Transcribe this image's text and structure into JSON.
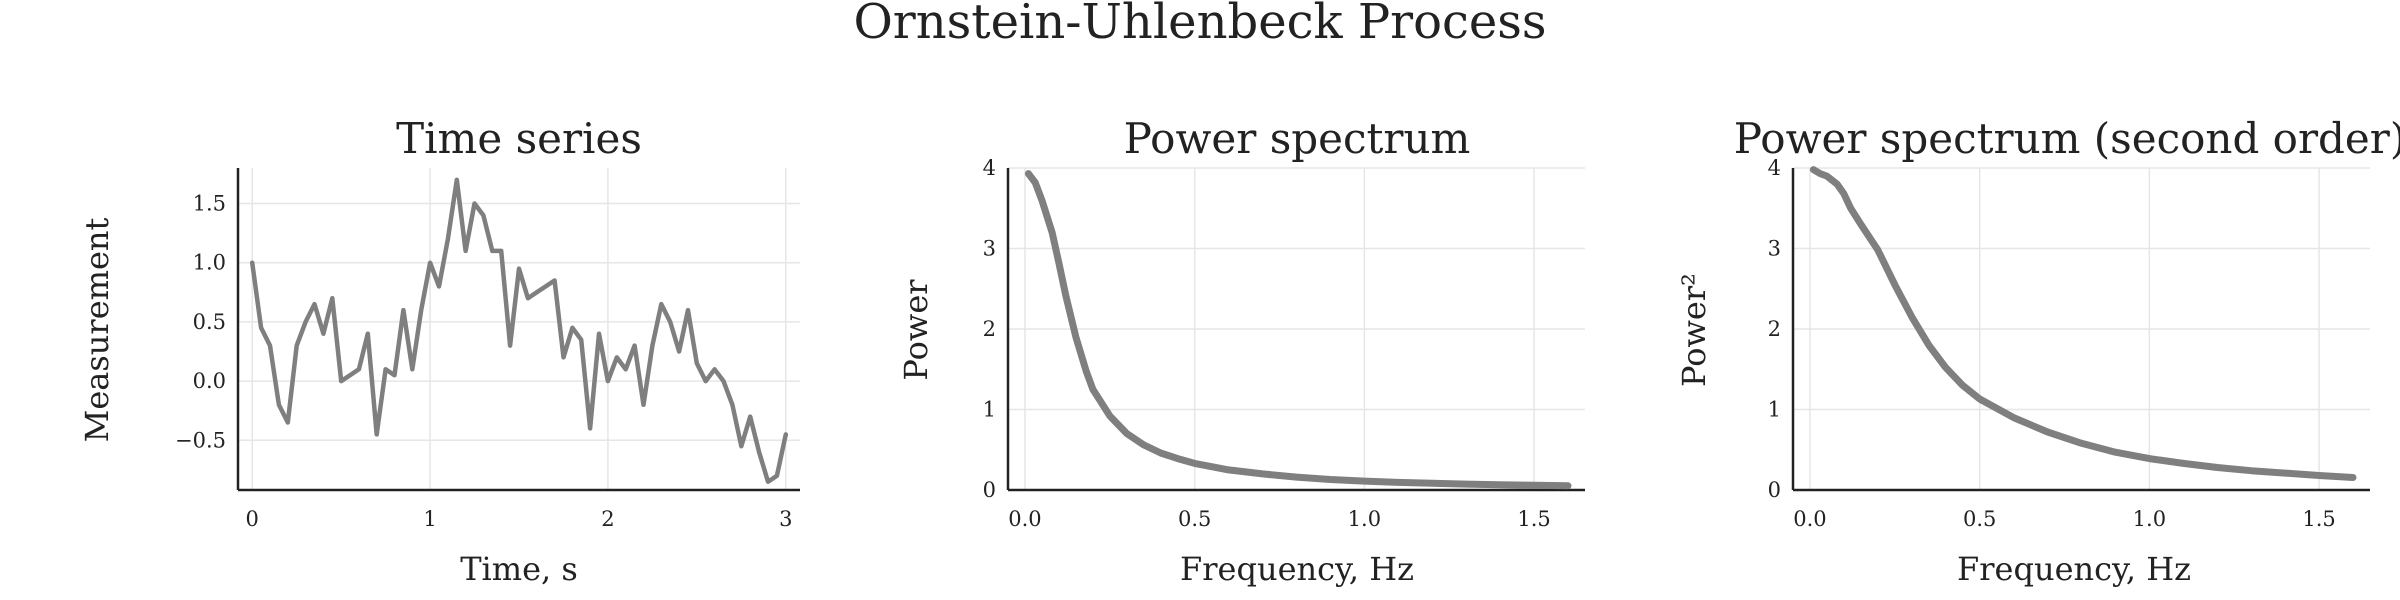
{
  "figure": {
    "title": "Ornstein-Uhlenbeck Process"
  },
  "series_color": "#7f7f7f",
  "chart_data": [
    {
      "type": "line",
      "title": "Time series",
      "xlabel": "Time, s",
      "ylabel": "Measurement",
      "xlim": [
        -0.08,
        3.08
      ],
      "ylim": [
        -0.92,
        1.8
      ],
      "xticks": [
        0,
        1,
        2,
        3
      ],
      "xtick_labels": [
        "0",
        "1",
        "2",
        "3"
      ],
      "yticks": [
        -0.5,
        0.0,
        0.5,
        1.0,
        1.5
      ],
      "ytick_labels": [
        "−0.5",
        "0.0",
        "0.5",
        "1.0",
        "1.5"
      ],
      "grid": true,
      "legend": "none",
      "series": [
        {
          "x": [
            0.0,
            0.05,
            0.1,
            0.15,
            0.2,
            0.25,
            0.3,
            0.35,
            0.4,
            0.45,
            0.5,
            0.55,
            0.6,
            0.65,
            0.7,
            0.75,
            0.8,
            0.85,
            0.9,
            0.95,
            1.0,
            1.05,
            1.1,
            1.15,
            1.2,
            1.25,
            1.3,
            1.35,
            1.4,
            1.45,
            1.5,
            1.55,
            1.6,
            1.65,
            1.7,
            1.75,
            1.8,
            1.85,
            1.9,
            1.95,
            2.0,
            2.05,
            2.1,
            2.15,
            2.2,
            2.25,
            2.3,
            2.35,
            2.4,
            2.45,
            2.5,
            2.55,
            2.6,
            2.65,
            2.7,
            2.75,
            2.8,
            2.85,
            2.9,
            2.95,
            3.0
          ],
          "y": [
            1.0,
            0.45,
            0.3,
            -0.2,
            -0.35,
            0.3,
            0.5,
            0.65,
            0.4,
            0.7,
            0.0,
            0.05,
            0.1,
            0.4,
            -0.45,
            0.1,
            0.05,
            0.6,
            0.1,
            0.6,
            1.0,
            0.8,
            1.2,
            1.7,
            1.1,
            1.5,
            1.4,
            1.1,
            1.1,
            0.3,
            0.95,
            0.7,
            0.75,
            0.8,
            0.85,
            0.2,
            0.45,
            0.35,
            -0.4,
            0.4,
            0.0,
            0.2,
            0.1,
            0.3,
            -0.2,
            0.3,
            0.65,
            0.5,
            0.25,
            0.6,
            0.15,
            0.0,
            0.1,
            0.0,
            -0.2,
            -0.55,
            -0.3,
            -0.6,
            -0.85,
            -0.8,
            -0.45
          ]
        }
      ]
    },
    {
      "type": "line",
      "title": "Power spectrum",
      "xlabel": "Frequency, Hz",
      "ylabel": "Power",
      "xlim": [
        -0.05,
        1.65
      ],
      "ylim": [
        0,
        4
      ],
      "xticks": [
        0.0,
        0.5,
        1.0,
        1.5
      ],
      "xtick_labels": [
        "0.0",
        "0.5",
        "1.0",
        "1.5"
      ],
      "yticks": [
        0,
        1,
        2,
        3,
        4
      ],
      "ytick_labels": [
        "0",
        "1",
        "2",
        "3",
        "4"
      ],
      "grid": true,
      "legend": "none",
      "series": [
        {
          "x": [
            0.01,
            0.03,
            0.05,
            0.08,
            0.1,
            0.12,
            0.15,
            0.18,
            0.2,
            0.25,
            0.3,
            0.35,
            0.4,
            0.45,
            0.5,
            0.6,
            0.7,
            0.8,
            0.9,
            1.0,
            1.1,
            1.2,
            1.3,
            1.4,
            1.5,
            1.6
          ],
          "y": [
            3.93,
            3.82,
            3.6,
            3.2,
            2.82,
            2.42,
            1.9,
            1.48,
            1.25,
            0.92,
            0.7,
            0.56,
            0.46,
            0.39,
            0.33,
            0.25,
            0.2,
            0.16,
            0.13,
            0.11,
            0.095,
            0.083,
            0.073,
            0.065,
            0.058,
            0.052
          ]
        }
      ]
    },
    {
      "type": "line",
      "title": "Power spectrum (second order)",
      "xlabel": "Frequency, Hz",
      "ylabel": "Power²",
      "xlim": [
        -0.05,
        1.65
      ],
      "ylim": [
        0,
        4
      ],
      "xticks": [
        0.0,
        0.5,
        1.0,
        1.5
      ],
      "xtick_labels": [
        "0.0",
        "0.5",
        "1.0",
        "1.5"
      ],
      "yticks": [
        0,
        1,
        2,
        3,
        4
      ],
      "ytick_labels": [
        "0",
        "1",
        "2",
        "3",
        "4"
      ],
      "grid": true,
      "legend": "none",
      "series": [
        {
          "x": [
            0.01,
            0.03,
            0.05,
            0.08,
            0.1,
            0.12,
            0.15,
            0.2,
            0.25,
            0.3,
            0.35,
            0.4,
            0.45,
            0.5,
            0.6,
            0.7,
            0.8,
            0.9,
            1.0,
            1.1,
            1.2,
            1.3,
            1.4,
            1.5,
            1.6
          ],
          "y": [
            3.98,
            3.93,
            3.9,
            3.8,
            3.68,
            3.5,
            3.3,
            2.98,
            2.55,
            2.15,
            1.8,
            1.52,
            1.3,
            1.13,
            0.9,
            0.72,
            0.58,
            0.47,
            0.39,
            0.33,
            0.28,
            0.24,
            0.21,
            0.18,
            0.155
          ]
        }
      ]
    }
  ]
}
